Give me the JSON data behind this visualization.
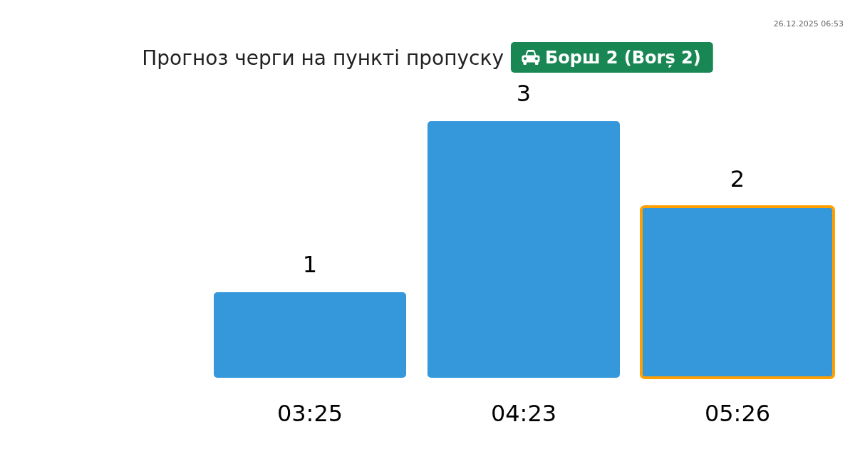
{
  "chart_data": {
    "type": "bar",
    "title": "Прогноз черги на пункті пропуску",
    "subtitle": "Борш 2 (Borș 2)",
    "categories": [
      "03:25",
      "04:23",
      "05:26"
    ],
    "values": [
      1,
      3,
      2
    ],
    "color": "#3498db",
    "ylim": [
      0,
      3
    ],
    "data_labels": true,
    "tick_labels": "x",
    "annotations": [
      "26.12.2025 06:53"
    ]
  }
}
